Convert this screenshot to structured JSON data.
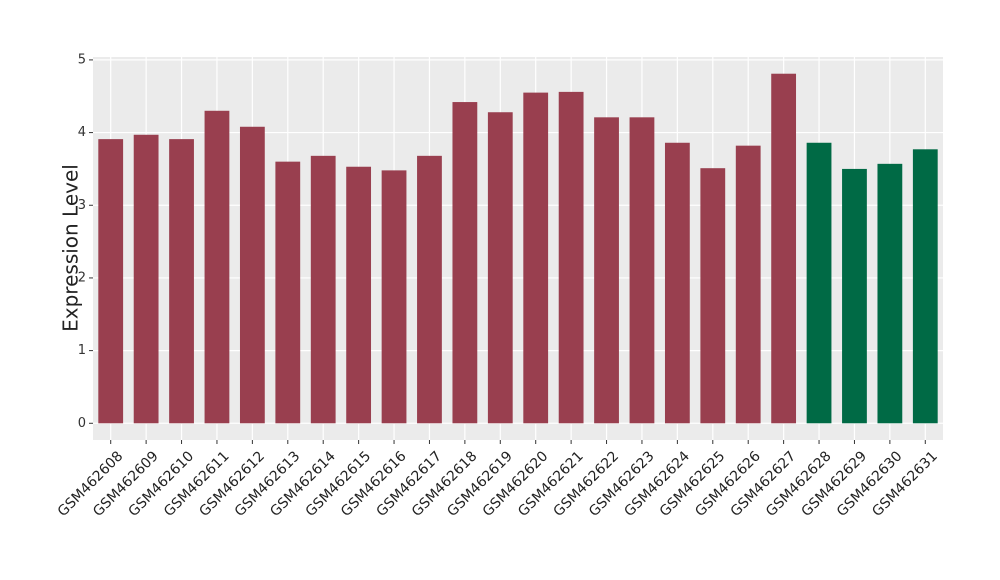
{
  "chart_data": {
    "type": "bar",
    "y_label": "Expression Level",
    "categories": [
      "GSM462608",
      "GSM462609",
      "GSM462610",
      "GSM462611",
      "GSM462612",
      "GSM462613",
      "GSM462614",
      "GSM462615",
      "GSM462616",
      "GSM462617",
      "GSM462618",
      "GSM462619",
      "GSM462620",
      "GSM462621",
      "GSM462622",
      "GSM462623",
      "GSM462624",
      "GSM462625",
      "GSM462626",
      "GSM462627",
      "GSM462628",
      "GSM462629",
      "GSM462630",
      "GSM462631"
    ],
    "values": [
      3.91,
      3.97,
      3.91,
      4.3,
      4.08,
      3.6,
      3.68,
      3.53,
      3.48,
      3.68,
      4.42,
      4.28,
      4.55,
      4.56,
      4.21,
      4.21,
      3.86,
      3.51,
      3.82,
      4.81,
      3.86,
      3.5,
      3.57,
      3.77
    ],
    "colors": [
      "#993f4f",
      "#993f4f",
      "#993f4f",
      "#993f4f",
      "#993f4f",
      "#993f4f",
      "#993f4f",
      "#993f4f",
      "#993f4f",
      "#993f4f",
      "#993f4f",
      "#993f4f",
      "#993f4f",
      "#993f4f",
      "#993f4f",
      "#993f4f",
      "#993f4f",
      "#993f4f",
      "#993f4f",
      "#993f4f",
      "#006a45",
      "#006a45",
      "#006a45",
      "#006a45"
    ],
    "ylim": [
      -0.23,
      5.04
    ],
    "yticks": [
      0,
      1,
      2,
      3,
      4,
      5
    ],
    "grid": true
  }
}
